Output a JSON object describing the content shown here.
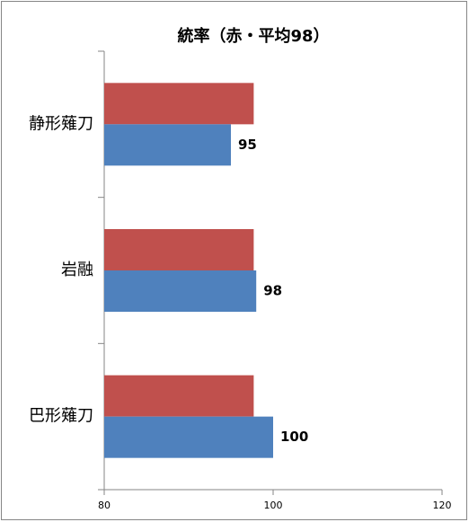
{
  "chart_data": {
    "type": "bar",
    "orientation": "horizontal",
    "title": "統率（赤・平均98）",
    "categories": [
      "静形薙刀",
      "岩融",
      "巴形薙刀"
    ],
    "series": [
      {
        "color": "#c0504d",
        "values": [
          97.7,
          97.7,
          97.7
        ]
      },
      {
        "color": "#4f81bd",
        "values": [
          95,
          98,
          100
        ],
        "value_labels": [
          "95",
          "98",
          "100"
        ]
      }
    ],
    "xlim": [
      80,
      120
    ],
    "xticks": [
      80,
      100,
      120
    ],
    "grid": false
  }
}
